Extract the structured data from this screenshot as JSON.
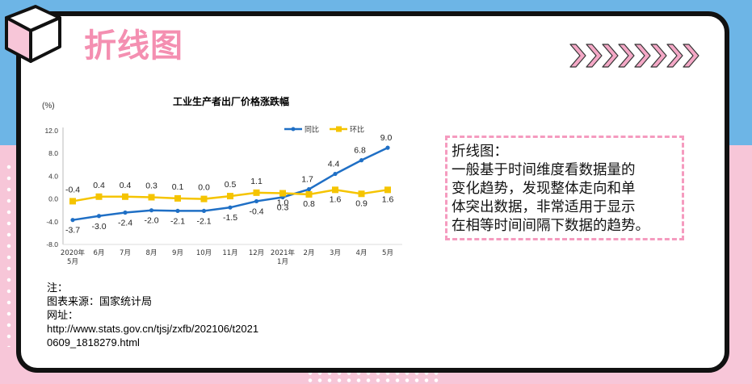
{
  "colors": {
    "bg_top": "#6db5e6",
    "bg_bottom": "#f7c6d8",
    "accent_pink": "#f48fb1",
    "dash_pink": "#f59bbf",
    "series_yoy": "#1f6fc5",
    "series_mom": "#f5c400"
  },
  "icons": {
    "corner": "cube-icon",
    "decoration": "chevron-pattern-icon"
  },
  "page": {
    "title": "折线图"
  },
  "description": {
    "lines": [
      "折线图：",
      "一般基于时间维度看数据量的",
      "变化趋势，发现整体走向和单",
      "体突出数据，非常适用于显示",
      "在相等时间间隔下数据的趋势。"
    ]
  },
  "notes": {
    "lines": [
      "注：",
      "图表来源：国家统计局",
      "网址：",
      "http://www.stats.gov.cn/tjsj/zxfb/202106/t2021",
      "0609_1818279.html"
    ]
  },
  "chart_data": {
    "type": "line",
    "title": "工业生产者出厂价格涨跌幅",
    "ylabel": "(%)",
    "xlabel": "",
    "categories": [
      "2020年\n5月",
      "6月",
      "7月",
      "8月",
      "9月",
      "10月",
      "11月",
      "12月",
      "2021年\n1月",
      "2月",
      "3月",
      "4月",
      "5月"
    ],
    "ylim": [
      -8.0,
      12.0
    ],
    "yticks": [
      "12.0",
      "8.0",
      "4.0",
      "0.0",
      "-4.0",
      "-8.0"
    ],
    "legend_position": "top-right",
    "grid": false,
    "series": [
      {
        "name": "同比",
        "color": "#1f6fc5",
        "values": [
          -3.7,
          -3.0,
          -2.4,
          -2.0,
          -2.1,
          -2.1,
          -1.5,
          -0.4,
          0.3,
          1.7,
          4.4,
          6.8,
          9.0
        ],
        "labels": [
          "-3.7",
          "-3.0",
          "-2.4",
          "-2.0",
          "-2.1",
          "-2.1",
          "-1.5",
          "-0.4",
          "0.3",
          "1.7",
          "4.4",
          "6.8",
          "9.0"
        ]
      },
      {
        "name": "环比",
        "color": "#f5c400",
        "values": [
          -0.4,
          0.4,
          0.4,
          0.3,
          0.1,
          0.0,
          0.5,
          1.1,
          1.0,
          0.8,
          1.6,
          0.9,
          1.6
        ],
        "labels": [
          "-0.4",
          "0.4",
          "0.4",
          "0.3",
          "0.1",
          "0.0",
          "0.5",
          "1.1",
          "1.0",
          "0.8",
          "1.6",
          "0.9",
          "1.6"
        ]
      }
    ]
  }
}
